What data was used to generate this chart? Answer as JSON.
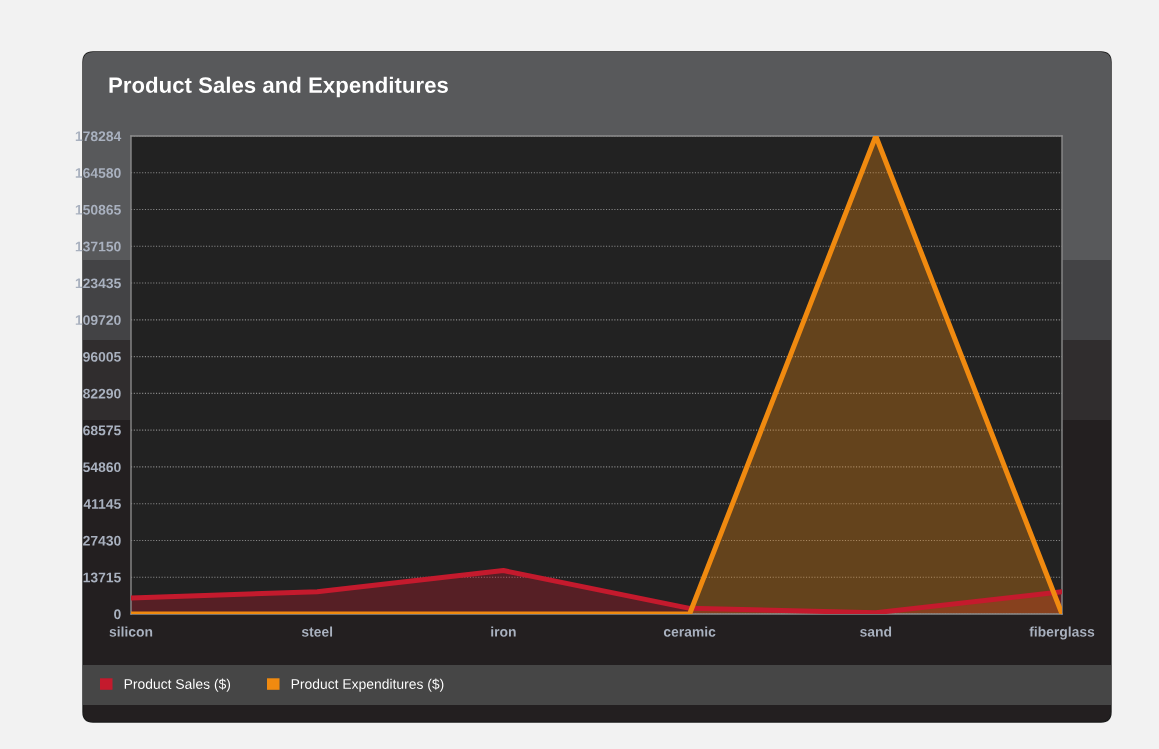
{
  "chart_data": {
    "type": "area",
    "title": "Product Sales and Expenditures",
    "categories": [
      "silicon",
      "steel",
      "iron",
      "ceramic",
      "sand",
      "fiberglass"
    ],
    "series": [
      {
        "name": "Product Sales ($)",
        "color": "#c41a2d",
        "values": [
          6000,
          8300,
          16200,
          2100,
          500,
          8300
        ]
      },
      {
        "name": "Product Expenditures ($)",
        "color": "#f08a10",
        "values": [
          0,
          0,
          0,
          0,
          178284,
          0
        ]
      }
    ],
    "ylim": [
      0,
      178284
    ],
    "yticks": [
      0,
      13715,
      27430,
      41145,
      54860,
      68575,
      82290,
      96005,
      109720,
      123435,
      137150,
      150865,
      164580,
      178284
    ],
    "grid": "y",
    "legend": "bottom"
  }
}
